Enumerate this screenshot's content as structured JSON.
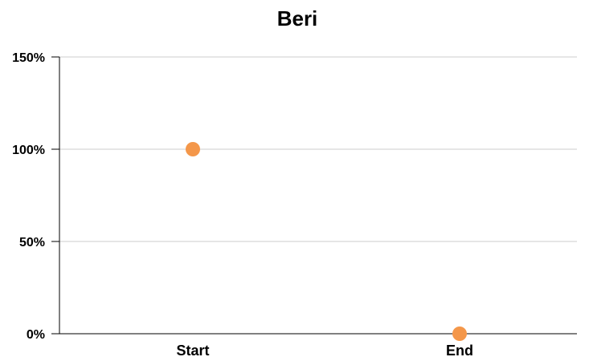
{
  "chart_data": {
    "type": "scatter",
    "title": "Beri",
    "xlabel": "",
    "ylabel": "",
    "categories": [
      "Start",
      "End"
    ],
    "series": [
      {
        "values": [
          100,
          0
        ]
      }
    ],
    "ylim": [
      0,
      150
    ],
    "yticks": [
      0,
      50,
      100,
      150
    ],
    "ytick_labels": [
      "0%",
      "50%",
      "100%",
      "150%"
    ],
    "grid": true,
    "legend": "none",
    "colors": {
      "marker": "#F4974A",
      "grid": "#CCCCCC",
      "axis": "#000000"
    }
  }
}
